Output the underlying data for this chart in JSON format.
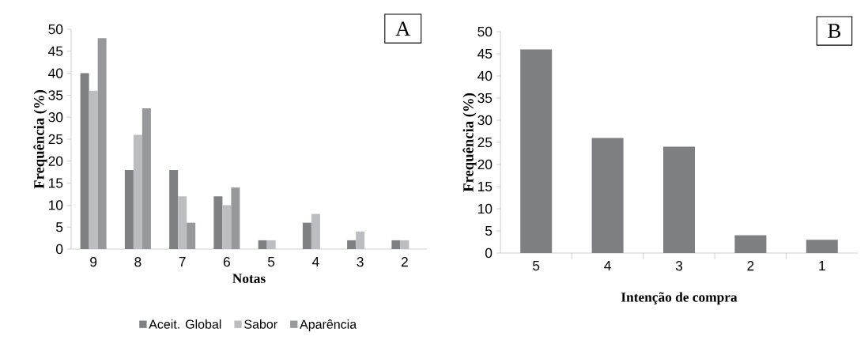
{
  "chart_data": [
    {
      "type": "bar",
      "xlabel": "Notas",
      "ylabel": "Frequência (%)",
      "categories": [
        "9",
        "8",
        "7",
        "6",
        "5",
        "4",
        "3",
        "2"
      ],
      "series": [
        {
          "name": "Aceit. Global",
          "color": "#7f8084",
          "values": [
            40,
            18,
            18,
            12,
            2,
            6,
            2,
            2
          ]
        },
        {
          "name": "Sabor",
          "color": "#bcbdc1",
          "values": [
            36,
            26,
            12,
            10,
            2,
            8,
            4,
            2
          ]
        },
        {
          "name": "Aparência",
          "color": "#97989c",
          "values": [
            48,
            32,
            6,
            14,
            0,
            0,
            0,
            0
          ]
        }
      ],
      "ylim": [
        0,
        50
      ],
      "yticks": [
        0,
        5,
        10,
        15,
        20,
        25,
        30,
        35,
        40,
        45,
        50
      ],
      "legend": "bottom",
      "annotations": [
        "A"
      ]
    },
    {
      "type": "bar",
      "xlabel": "Intenção de compra",
      "ylabel": "Frequência (%)",
      "categories": [
        "5",
        "4",
        "3",
        "2",
        "1"
      ],
      "series": [
        {
          "color": "#7e7f83",
          "values": [
            46,
            26,
            24,
            4,
            3
          ]
        }
      ],
      "ylim": [
        0,
        50
      ],
      "yticks": [
        0,
        5,
        10,
        15,
        20,
        25,
        30,
        35,
        40,
        45,
        50
      ],
      "annotations": [
        "B"
      ]
    }
  ]
}
